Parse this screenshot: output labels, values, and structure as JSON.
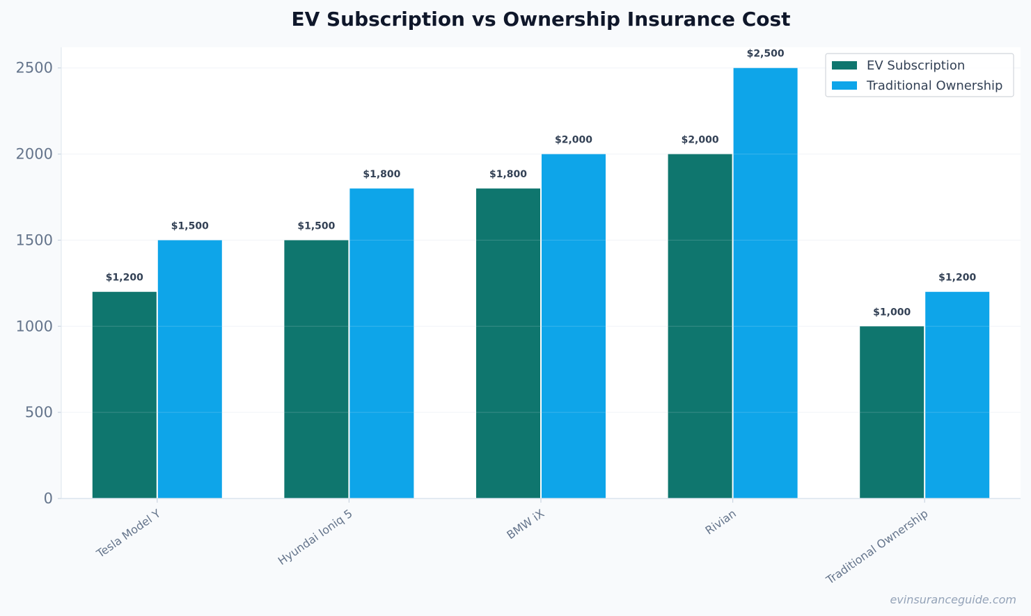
{
  "chart_data": {
    "type": "bar",
    "title": "EV Subscription vs Ownership Insurance Cost",
    "xlabel": "",
    "ylabel": "",
    "categories": [
      "Tesla Model Y",
      "Hyundai Ioniq 5",
      "BMW iX",
      "Rivian",
      "Traditional Ownership"
    ],
    "series": [
      {
        "name": "EV Subscription",
        "color": "#0f766e",
        "values": [
          1200,
          1500,
          1800,
          2000,
          1000
        ],
        "labels": [
          "$1,200",
          "$1,500",
          "$1,800",
          "$2,000",
          "$1,000"
        ]
      },
      {
        "name": "Traditional Ownership",
        "color": "#0ea5e9",
        "values": [
          1500,
          1800,
          2000,
          2500,
          1200
        ],
        "labels": [
          "$1,500",
          "$1,800",
          "$2,000",
          "$2,500",
          "$1,200"
        ]
      }
    ],
    "ylim": [
      0,
      2620
    ],
    "yticks": [
      0,
      500,
      1000,
      1500,
      2000,
      2500
    ],
    "grid": true,
    "legend": "top-right"
  },
  "watermark": "evinsuranceguide.com"
}
